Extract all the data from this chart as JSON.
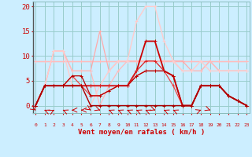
{
  "x": [
    0,
    1,
    2,
    3,
    4,
    5,
    6,
    7,
    8,
    9,
    10,
    11,
    12,
    13,
    14,
    15,
    16,
    17,
    18,
    19,
    20,
    21,
    22,
    23
  ],
  "background_color": "#cceeff",
  "grid_color": "#99cccc",
  "xlabel": "Vent moyen/en rafales ( km/h )",
  "yticks": [
    0,
    5,
    10,
    15,
    20
  ],
  "ylim": [
    -1.5,
    21
  ],
  "xlim": [
    -0.3,
    23.3
  ],
  "series": [
    {
      "y": [
        9,
        9,
        9,
        9,
        9,
        9,
        9,
        9,
        9,
        9,
        9,
        9,
        9,
        9,
        9,
        9,
        9,
        9,
        9,
        9,
        9,
        9,
        9,
        9
      ],
      "color": "#ffaaaa",
      "lw": 0.9,
      "marker": "+"
    },
    {
      "y": [
        9,
        9,
        9,
        9,
        9,
        9,
        9,
        9,
        9,
        9,
        9,
        9,
        9,
        9,
        9,
        9,
        9,
        9,
        9,
        9,
        9,
        9,
        9,
        9
      ],
      "color": "#ffbbbb",
      "lw": 0.9,
      "marker": "+"
    },
    {
      "y": [
        0,
        4,
        11,
        11,
        7,
        7,
        7,
        15,
        7,
        9,
        9,
        9,
        9,
        9,
        9,
        9,
        9,
        7,
        7,
        9,
        7,
        7,
        7,
        7
      ],
      "color": "#ffaaaa",
      "lw": 0.9,
      "marker": "+"
    },
    {
      "y": [
        0,
        4,
        11,
        11,
        7,
        7,
        7,
        0,
        4,
        7,
        9,
        9,
        9,
        9,
        9,
        9,
        7,
        7,
        7,
        9,
        7,
        7,
        7,
        7
      ],
      "color": "#ffbbbb",
      "lw": 0.9,
      "marker": "+"
    },
    {
      "y": [
        0,
        4,
        11,
        11,
        4,
        4,
        0,
        4,
        7,
        9,
        9,
        17,
        20,
        20,
        13,
        9,
        7,
        7,
        9,
        7,
        7,
        7,
        7,
        7
      ],
      "color": "#ffcccc",
      "lw": 1.0,
      "marker": "+"
    },
    {
      "y": [
        0,
        4,
        4,
        4,
        4,
        4,
        4,
        4,
        4,
        4,
        4,
        7,
        13,
        13,
        7,
        6,
        0,
        0,
        4,
        4,
        4,
        2,
        1,
        0
      ],
      "color": "#cc0000",
      "lw": 1.3,
      "marker": "+"
    },
    {
      "y": [
        0,
        4,
        4,
        4,
        4,
        4,
        4,
        4,
        4,
        4,
        4,
        7,
        9,
        9,
        7,
        6,
        0,
        0,
        4,
        4,
        4,
        2,
        1,
        0
      ],
      "color": "#dd2222",
      "lw": 0.9,
      "marker": "+"
    },
    {
      "y": [
        0,
        4,
        4,
        4,
        6,
        4,
        2,
        2,
        3,
        4,
        4,
        6,
        7,
        7,
        7,
        4,
        0,
        0,
        4,
        4,
        4,
        2,
        1,
        0
      ],
      "color": "#ee4444",
      "lw": 0.9,
      "marker": "+"
    },
    {
      "y": [
        0,
        4,
        4,
        4,
        6,
        6,
        2,
        2,
        3,
        4,
        4,
        6,
        7,
        7,
        7,
        6,
        0,
        0,
        4,
        4,
        4,
        2,
        1,
        0
      ],
      "color": "#bb0000",
      "lw": 0.9,
      "marker": "+"
    },
    {
      "y": [
        0,
        4,
        4,
        4,
        4,
        4,
        0,
        0,
        0,
        0,
        0,
        0,
        0,
        0,
        0,
        0,
        0,
        0,
        4,
        4,
        4,
        2,
        1,
        0
      ],
      "color": "#aa0000",
      "lw": 1.0,
      "marker": "+"
    }
  ],
  "wind_arrows_x": [
    0,
    1,
    2,
    3,
    4,
    5,
    6,
    7,
    8,
    9,
    10,
    11,
    12,
    13,
    14,
    15,
    18,
    19
  ],
  "wind_arrows_dx": [
    0.08,
    -0.1,
    0.1,
    -0.1,
    -0.12,
    -0.12,
    0.08,
    0.12,
    -0.1,
    -0.1,
    -0.1,
    -0.1,
    -0.1,
    0.12,
    -0.1,
    -0.1,
    0.12,
    0.12
  ],
  "wind_arrows_dy": [
    -0.1,
    0.08,
    0.1,
    0.08,
    0,
    0,
    -0.1,
    -0.08,
    0.08,
    0.08,
    0.08,
    0.08,
    0.08,
    -0.08,
    0.08,
    0.08,
    0.08,
    -0.08
  ]
}
